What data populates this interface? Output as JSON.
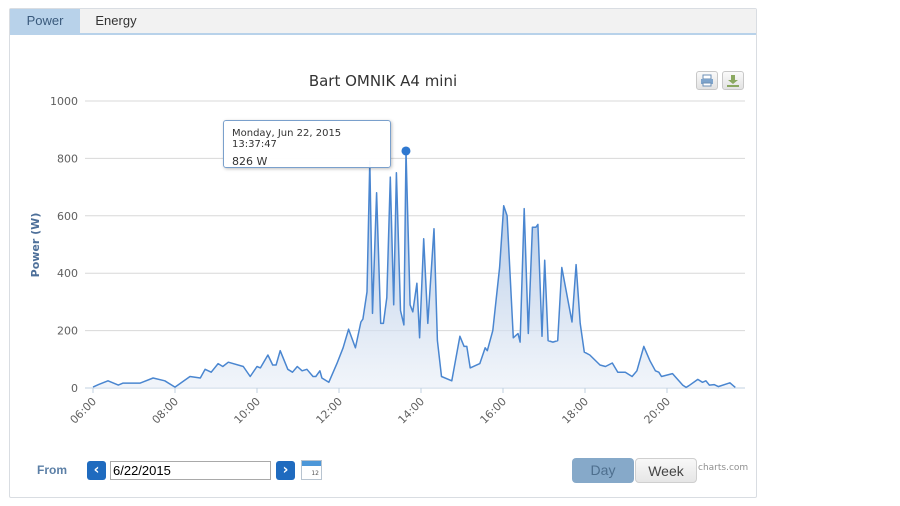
{
  "tabs": [
    {
      "label": "Power",
      "active": true
    },
    {
      "label": "Energy",
      "active": false
    }
  ],
  "chart_data": {
    "type": "area",
    "title": "Bart OMNIK A4 mini",
    "ylabel": "Power (W)",
    "xlabel": "",
    "ylim": [
      0,
      1000
    ],
    "yticks": [
      "0",
      "200",
      "400",
      "600",
      "800",
      "1000"
    ],
    "xlim": [
      "06:00",
      "21:45"
    ],
    "xticks": [
      "06:00",
      "08:00",
      "10:00",
      "12:00",
      "14:00",
      "16:00",
      "18:00",
      "20:00"
    ],
    "grid": true,
    "legend": "none",
    "colors": {
      "line": "#4a86d0",
      "fill": "#c7d7ec",
      "marker": "#2f78d0"
    },
    "series": [
      {
        "points": [
          [
            "06:00",
            3
          ],
          [
            "06:08",
            12
          ],
          [
            "06:22",
            25
          ],
          [
            "06:37",
            10
          ],
          [
            "06:44",
            17
          ],
          [
            "07:09",
            17
          ],
          [
            "07:28",
            35
          ],
          [
            "07:45",
            25
          ],
          [
            "08:00",
            3
          ],
          [
            "08:22",
            40
          ],
          [
            "08:37",
            35
          ],
          [
            "08:44",
            65
          ],
          [
            "08:53",
            55
          ],
          [
            "09:03",
            85
          ],
          [
            "09:10",
            75
          ],
          [
            "09:18",
            90
          ],
          [
            "09:40",
            75
          ],
          [
            "09:50",
            40
          ],
          [
            "10:00",
            75
          ],
          [
            "10:05",
            70
          ],
          [
            "10:16",
            115
          ],
          [
            "10:23",
            80
          ],
          [
            "10:28",
            80
          ],
          [
            "10:34",
            130
          ],
          [
            "10:45",
            65
          ],
          [
            "10:52",
            55
          ],
          [
            "10:59",
            75
          ],
          [
            "11:06",
            60
          ],
          [
            "11:13",
            65
          ],
          [
            "11:22",
            40
          ],
          [
            "11:26",
            40
          ],
          [
            "11:32",
            60
          ],
          [
            "11:35",
            35
          ],
          [
            "11:45",
            20
          ],
          [
            "11:57",
            85
          ],
          [
            "12:06",
            140
          ],
          [
            "12:14",
            205
          ],
          [
            "12:24",
            140
          ],
          [
            "12:32",
            230
          ],
          [
            "12:35",
            240
          ],
          [
            "12:41",
            335
          ],
          [
            "12:45",
            790
          ],
          [
            "12:49",
            260
          ],
          [
            "12:55",
            680
          ],
          [
            "13:01",
            225
          ],
          [
            "13:05",
            225
          ],
          [
            "13:10",
            315
          ],
          [
            "13:15",
            735
          ],
          [
            "13:20",
            290
          ],
          [
            "13:24",
            750
          ],
          [
            "13:30",
            270
          ],
          [
            "13:35",
            220
          ],
          [
            "13:38",
            826
          ],
          [
            "13:44",
            290
          ],
          [
            "13:48",
            265
          ],
          [
            "13:54",
            365
          ],
          [
            "13:58",
            175
          ],
          [
            "14:04",
            520
          ],
          [
            "14:10",
            225
          ],
          [
            "14:19",
            555
          ],
          [
            "14:24",
            165
          ],
          [
            "14:30",
            40
          ],
          [
            "14:45",
            25
          ],
          [
            "14:57",
            180
          ],
          [
            "15:03",
            145
          ],
          [
            "15:07",
            145
          ],
          [
            "15:12",
            70
          ],
          [
            "15:26",
            85
          ],
          [
            "15:34",
            140
          ],
          [
            "15:37",
            130
          ],
          [
            "15:45",
            200
          ],
          [
            "15:55",
            420
          ],
          [
            "16:01",
            635
          ],
          [
            "16:06",
            600
          ],
          [
            "16:15",
            175
          ],
          [
            "16:22",
            190
          ],
          [
            "16:25",
            160
          ],
          [
            "16:31",
            625
          ],
          [
            "16:37",
            190
          ],
          [
            "16:43",
            560
          ],
          [
            "16:48",
            560
          ],
          [
            "16:51",
            570
          ],
          [
            "16:57",
            180
          ],
          [
            "17:01",
            445
          ],
          [
            "17:06",
            165
          ],
          [
            "17:13",
            160
          ],
          [
            "17:20",
            165
          ],
          [
            "17:26",
            420
          ],
          [
            "17:41",
            230
          ],
          [
            "17:47",
            430
          ],
          [
            "17:53",
            225
          ],
          [
            "17:59",
            125
          ],
          [
            "18:07",
            115
          ],
          [
            "18:22",
            80
          ],
          [
            "18:30",
            75
          ],
          [
            "18:40",
            87
          ],
          [
            "18:48",
            55
          ],
          [
            "18:59",
            55
          ],
          [
            "19:09",
            40
          ],
          [
            "19:16",
            60
          ],
          [
            "19:26",
            145
          ],
          [
            "19:35",
            95
          ],
          [
            "19:43",
            60
          ],
          [
            "19:48",
            55
          ],
          [
            "19:52",
            40
          ],
          [
            "20:08",
            50
          ],
          [
            "20:23",
            10
          ],
          [
            "20:28",
            2
          ],
          [
            "20:32",
            8
          ],
          [
            "20:45",
            30
          ],
          [
            "20:52",
            20
          ],
          [
            "20:57",
            25
          ],
          [
            "21:02",
            10
          ],
          [
            "21:09",
            12
          ],
          [
            "21:15",
            5
          ],
          [
            "21:32",
            18
          ],
          [
            "21:40",
            2
          ]
        ]
      }
    ],
    "tooltip": {
      "date": "Monday, Jun 22, 2015 13:37:47",
      "value": "826 W",
      "point": [
        "13:38",
        826
      ]
    }
  },
  "export": {
    "print_icon": "printer-icon",
    "download_icon": "download-icon"
  },
  "controls": {
    "from_label": "From",
    "prev_icon": "chevron-left-icon",
    "next_icon": "chevron-right-icon",
    "prev_glyph": "‹",
    "next_glyph": "›",
    "date_value": "6/22/2015",
    "calendar_icon": "calendar-icon",
    "calendar_day": "12",
    "day_label": "Day",
    "week_label": "Week",
    "selected_range": "Day"
  },
  "credit": "charts.com"
}
